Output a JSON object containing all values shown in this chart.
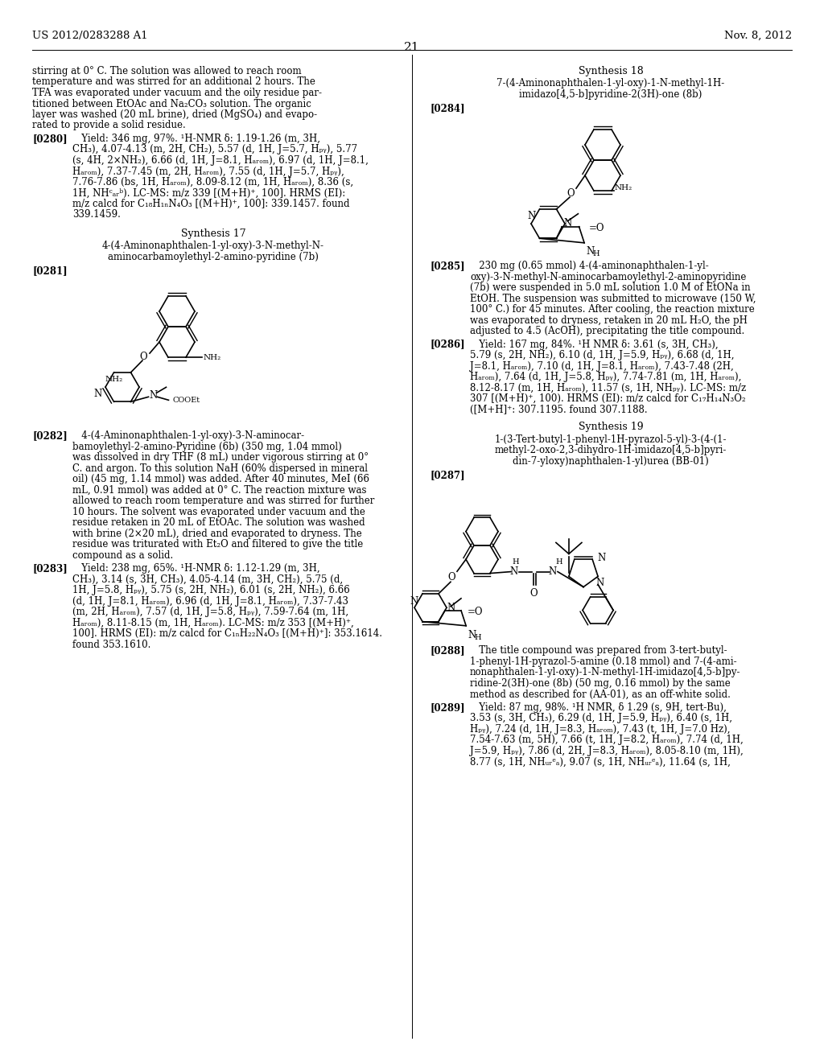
{
  "bg_color": "#ffffff",
  "header_left": "US 2012/0283288 A1",
  "header_right": "Nov. 8, 2012",
  "page_number": "21",
  "body_fs": 8.5,
  "label_fs": 8.5,
  "title_fs": 9.0
}
